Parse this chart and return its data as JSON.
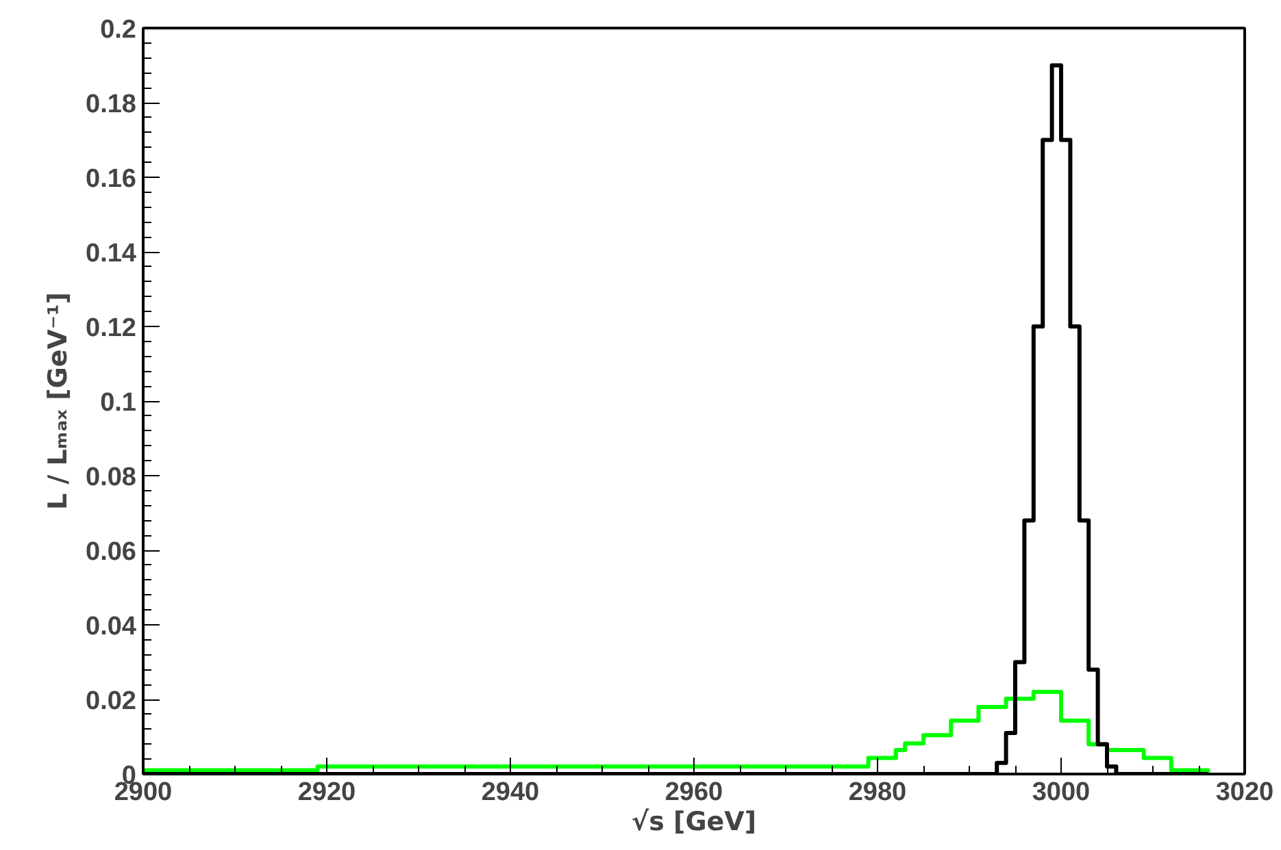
{
  "chart_data": {
    "type": "histogram",
    "xlabel": "√s [GeV]",
    "ylabel": "L / Lₘₐₓ [GeV⁻¹]",
    "bins": [
      2900,
      2919,
      2979,
      2982,
      2983,
      2985,
      2988,
      2991,
      2993,
      2994,
      2995,
      2996,
      2997,
      2998,
      2999,
      3000,
      3001,
      3002,
      3003,
      3004,
      3005,
      3006,
      3009,
      3012,
      3016
    ],
    "series": [
      {
        "color": "#00ff00",
        "values": [
          0.001,
          0.002,
          0.0043,
          0.0064,
          0.0082,
          0.0104,
          0.0143,
          0.018,
          0.018,
          0.0202,
          0.0202,
          0.0202,
          0.022,
          0.022,
          0.022,
          0.0143,
          0.0143,
          0.0143,
          0.008,
          0.008,
          0.0064,
          0.0064,
          0.0043,
          0.001
        ]
      },
      {
        "color": "#000000",
        "values": [
          0,
          0,
          0,
          0,
          0,
          0,
          0,
          0,
          0.003,
          0.011,
          0.03,
          0.068,
          0.12,
          0.17,
          0.19,
          0.17,
          0.12,
          0.068,
          0.028,
          0.008,
          0.002,
          0,
          0,
          0
        ]
      }
    ],
    "xlim": [
      2900,
      3020
    ],
    "xticks": [
      2900,
      2920,
      2940,
      2960,
      2980,
      3000,
      3020
    ],
    "ylim": [
      0,
      0.2
    ],
    "yticks": [
      0,
      0.02,
      0.04,
      0.06,
      0.08,
      0.1,
      0.12,
      0.14,
      0.16,
      0.18,
      0.2
    ],
    "grid": false
  }
}
